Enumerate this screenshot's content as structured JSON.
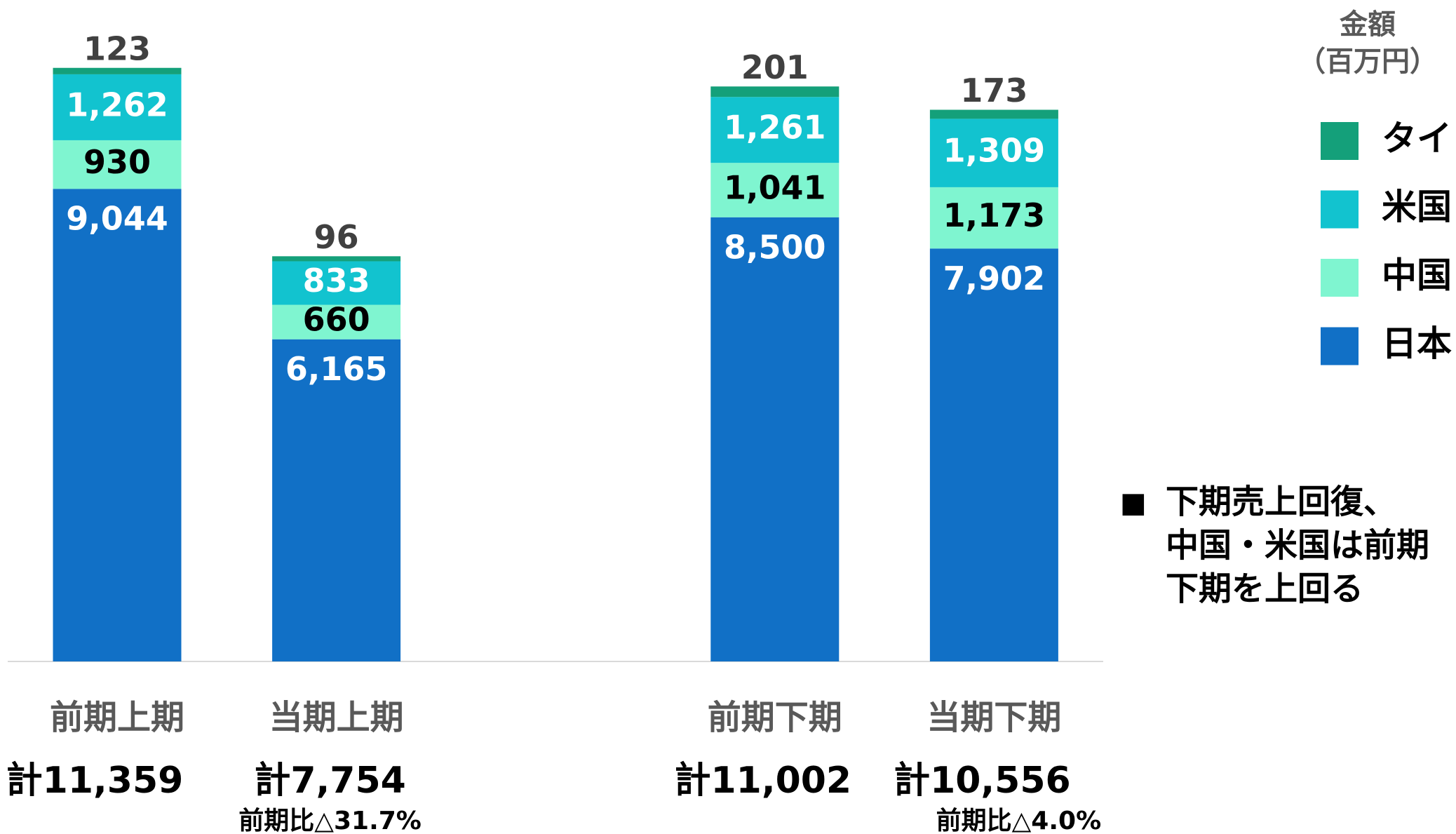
{
  "chart_data": {
    "type": "bar",
    "stacked": true,
    "categories": [
      "前期上期",
      "当期上期",
      null,
      "前期下期",
      "当期下期"
    ],
    "series": [
      {
        "name": "日本",
        "color": "#1170c6",
        "label_color": "#ffffff",
        "values": [
          9044,
          6165,
          null,
          8500,
          7902
        ],
        "value_labels": [
          "9,044",
          "6,165",
          null,
          "8,500",
          "7,902"
        ]
      },
      {
        "name": "中国",
        "color": "#7ff5d0",
        "label_color": "#000000",
        "values": [
          930,
          660,
          null,
          1041,
          1173
        ],
        "value_labels": [
          "930",
          "660",
          null,
          "1,041",
          "1,173"
        ]
      },
      {
        "name": "米国",
        "color": "#12c3cf",
        "label_color": "#ffffff",
        "values": [
          1262,
          833,
          null,
          1261,
          1309
        ],
        "value_labels": [
          "1,262",
          "833",
          null,
          "1,261",
          "1,309"
        ]
      },
      {
        "name": "タイ",
        "color": "#14a07a",
        "label_color": "#404040",
        "values": [
          123,
          96,
          null,
          201,
          173
        ],
        "value_labels": [
          "123",
          "96",
          null,
          "201",
          "173"
        ]
      }
    ],
    "ylim": [
      0,
      12000
    ],
    "totals": [
      "計11,359",
      "計7,754",
      null,
      "計11,002",
      "計10,556"
    ],
    "comparisons": [
      null,
      "前期比△31.7%",
      null,
      null,
      "前期比△4.0%"
    ],
    "legend_title": [
      "金額",
      "（百万円）"
    ],
    "note": {
      "bullet": "■",
      "lines": [
        "下期売上回復、",
        "中国・米国は前期",
        "下期を上回る"
      ]
    }
  }
}
